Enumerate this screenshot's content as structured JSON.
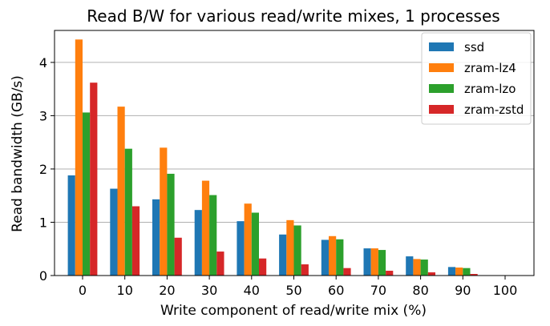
{
  "chart_data": {
    "type": "bar",
    "title": "Read B/W for various read/write mixes, 1 processes",
    "xlabel": "Write component of read/write mix (%)",
    "ylabel": "Read bandwidth (GB/s)",
    "categories": [
      "0",
      "10",
      "20",
      "30",
      "40",
      "50",
      "60",
      "70",
      "80",
      "90",
      "100"
    ],
    "ylim": [
      0,
      4.6
    ],
    "yticks": [
      "0",
      "1",
      "2",
      "3",
      "4"
    ],
    "grid": "horizontal",
    "legend_position": "top-right",
    "series": [
      {
        "name": "ssd",
        "color": "#1f77b4",
        "values": [
          1.88,
          1.63,
          1.43,
          1.23,
          1.02,
          0.77,
          0.67,
          0.51,
          0.36,
          0.16,
          0
        ]
      },
      {
        "name": "zram-lz4",
        "color": "#ff7f0e",
        "values": [
          4.43,
          3.17,
          2.4,
          1.78,
          1.35,
          1.04,
          0.74,
          0.51,
          0.31,
          0.15,
          0
        ]
      },
      {
        "name": "zram-lzo",
        "color": "#2ca02c",
        "values": [
          3.06,
          2.38,
          1.91,
          1.51,
          1.18,
          0.94,
          0.68,
          0.48,
          0.3,
          0.14,
          0
        ]
      },
      {
        "name": "zram-zstd",
        "color": "#d62728",
        "values": [
          3.62,
          1.3,
          0.71,
          0.45,
          0.32,
          0.21,
          0.14,
          0.09,
          0.06,
          0.03,
          0
        ]
      }
    ]
  }
}
